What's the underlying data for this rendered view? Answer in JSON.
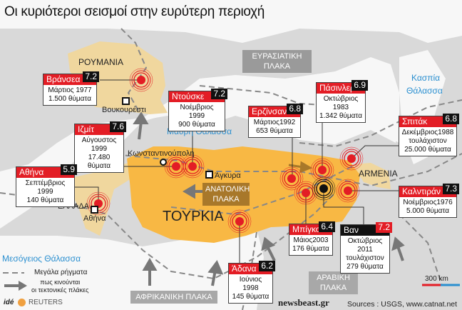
{
  "title": "Οι κυριότεροι σεισμοί στην ευρύτερη περιοχή",
  "colors": {
    "land": "#d9d9d9",
    "sea": "#f7f7f7",
    "turkey": "#f8b844",
    "neighbors": "#f0d79e",
    "quake": "#e31d25",
    "badge": "#111111",
    "plate_label": "#9a9a9a",
    "anatolian_plate": "#a8782a",
    "sea_text": "#2a8fd0"
  },
  "labels": {
    "romania": "ΡΟΥΜΑΝΙΑ",
    "bucharest": "Βουκουρέστι",
    "black_sea": "Μαύρη Θάλασσα",
    "istanbul": "Κωνσταντινούπολη",
    "ankara": "Άγκυρα",
    "turkey": "ΤΟΥΡΚΙΑ",
    "greece": "ΕΛΛΑΔΑ",
    "athens": "Αθήνα",
    "armenia": "ARMENIA",
    "caspian1": "Κασπία",
    "caspian2": "Θάλασσα",
    "mediterranean": "Μεσόγειος Θάλασσα"
  },
  "plates": {
    "eurasian": [
      "ΕΥΡΑΣΙΑΤΙΚΗ",
      "ΠΛΑΚΑ"
    ],
    "anatolian": [
      "ΑΝΑΤΟΛΙΚΗ",
      "ΠΛΑΚΑ"
    ],
    "african": "ΑΦΡΙΚΑΝΙΚΗ ΠΛΑΚΑ",
    "arabian": [
      "ΑΡΑΒΙΚΗ",
      "ΠΛΑΚΑ"
    ]
  },
  "quakes": [
    {
      "name": "Βράνσεα",
      "magnitude": "7.2",
      "date": "Μάρτιος 1977",
      "victims": "1.500 θύματα"
    },
    {
      "name": "Ντούσκε",
      "magnitude": "7.2",
      "date": "Νοέμβριος 1999",
      "victims": "900 θύματα"
    },
    {
      "name": "Ιζμίτ",
      "magnitude": "7.6",
      "date": "Αύγουστος 1999",
      "victims": "17.480 θύματα"
    },
    {
      "name": "Αθήνα",
      "magnitude": "5.9",
      "date": "Σεπτέμβριος 1999",
      "victims": "140 θύματα"
    },
    {
      "name": "Ερζίνσαν",
      "magnitude": "6.8",
      "date": "Μάρτιος1992",
      "victims": "653 θύματα"
    },
    {
      "name": "Πάσινλερ",
      "magnitude": "6.9",
      "date": "Οκτώβριος 1983",
      "victims": "1.342 θύματα"
    },
    {
      "name": "Σπιτάκ",
      "magnitude": "6.8",
      "date": "Δεκέμβριος1988",
      "note": "τουλάχιστον",
      "victims": "25.000 θύματα"
    },
    {
      "name": "Καλντιράν",
      "magnitude": "7.3",
      "date": "Νοέμβριος1976",
      "victims": "5.000 θύματα"
    },
    {
      "name": "Μπίγκολ",
      "magnitude": "6.4",
      "date": "Μάιος2003",
      "victims": "176 θύματα"
    },
    {
      "name": "Βαν",
      "magnitude": "7.2",
      "date": "Οκτώβριος 2011",
      "note": "τουλάχιστον",
      "victims": "279 θύματα"
    },
    {
      "name": "Άδανα",
      "magnitude": "6.2",
      "date": "Ιούνιος 1998",
      "victims": "145 θύματα"
    }
  ],
  "legend": {
    "faults": "Μεγάλα ρήγματα",
    "arrows1": "πως κινούνται",
    "arrows2": "οι τεκτονικές πλάκες"
  },
  "scale": "300 km",
  "footer": {
    "sources": "Sources : USGS, www.catnat.net",
    "publisher": "newsbeast.gr",
    "agency_prefix": "idé",
    "agency": "REUTERS"
  }
}
